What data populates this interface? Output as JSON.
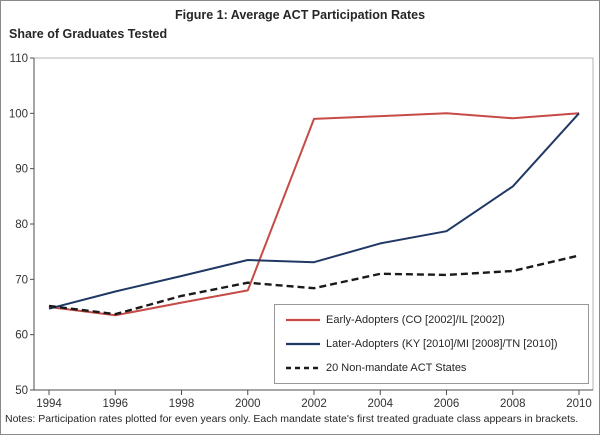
{
  "figure": {
    "title": "Figure 1: Average ACT Participation Rates",
    "y_caption": "Share of Graduates Tested",
    "notes": "Notes:  Participation rates plotted for even years only. Each mandate state's first treated graduate class appears in brackets."
  },
  "chart_data": {
    "type": "line",
    "x": [
      1994,
      1996,
      1998,
      2000,
      2002,
      2004,
      2006,
      2008,
      2010
    ],
    "series": [
      {
        "name": "Early-Adopters (CO [2002]/IL [2002])",
        "color": "#C64B46",
        "style": "solid",
        "values": [
          65.0,
          63.5,
          65.8,
          68.0,
          99.0,
          99.5,
          100.0,
          99.1,
          100.0
        ]
      },
      {
        "name": "Later-Adopters (KY [2010]/MI [2008]/TN [2010])",
        "color": "#1F3864",
        "style": "solid",
        "values": [
          64.7,
          67.8,
          70.6,
          73.5,
          73.1,
          76.5,
          78.7,
          86.8,
          100.0
        ]
      },
      {
        "name": "20 Non-mandate ACT States",
        "color": "#1A1A1A",
        "style": "dashed",
        "values": [
          65.2,
          63.7,
          67.0,
          69.4,
          68.4,
          71.0,
          70.8,
          71.5,
          74.3
        ]
      }
    ],
    "title": "Figure 1: Average ACT Participation Rates",
    "xlabel": "",
    "ylabel": "Share of Graduates Tested",
    "ylim": [
      50,
      110
    ],
    "yticks": [
      50,
      60,
      70,
      80,
      90,
      100,
      110
    ],
    "xticks": [
      1994,
      1996,
      1998,
      2000,
      2002,
      2004,
      2006,
      2008,
      2010
    ],
    "grid": false,
    "legend_position": "inside-bottom-right"
  }
}
